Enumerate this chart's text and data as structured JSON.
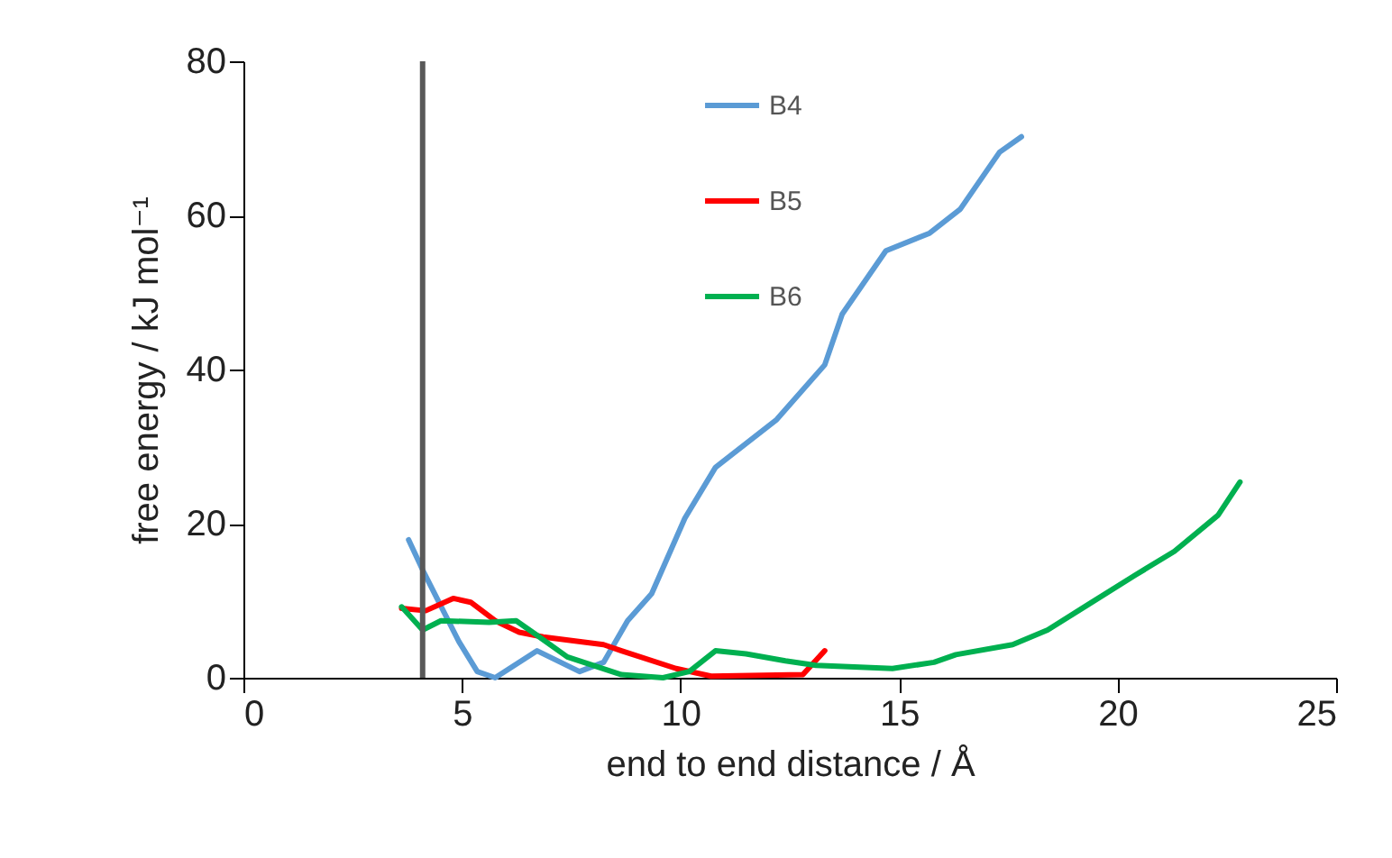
{
  "chart_data": {
    "type": "line",
    "xlabel": "end to end distance / Å",
    "ylabel": "free energy / kJ mol⁻¹",
    "xlim": [
      0,
      25
    ],
    "xticks": [
      0,
      5,
      10,
      15,
      20,
      25
    ],
    "ylim": [
      0,
      80
    ],
    "yticks": [
      0,
      20,
      40,
      60,
      80
    ],
    "grid": false,
    "legend": "top",
    "line_style": "solid",
    "marker": "none",
    "ref_lines": [
      {
        "axis": "x",
        "value": 4.1,
        "color": "#595959"
      }
    ],
    "series": [
      {
        "name": "B4",
        "color": "#5b9bd5",
        "x": [
          3.78,
          4.1,
          4.93,
          5.35,
          5.76,
          6.72,
          7.69,
          8.24,
          8.79,
          9.34,
          10.1,
          10.8,
          12.2,
          13.3,
          13.7,
          14.7,
          15.7,
          16.4,
          17.3,
          17.8
        ],
        "values": [
          17.9,
          14,
          4.7,
          0.8,
          0,
          3.5,
          0.8,
          2,
          7.4,
          10.9,
          20.7,
          27.3,
          33.5,
          40.6,
          47.2,
          55.4,
          57.7,
          60.8,
          68.2,
          70.2
        ]
      },
      {
        "name": "B5",
        "color": "#ff0000",
        "x": [
          3.62,
          4.17,
          4.8,
          5.2,
          5.76,
          6.31,
          6.86,
          8.24,
          8.65,
          9.9,
          10.7,
          12.8,
          13.3
        ],
        "values": [
          9.0,
          8.7,
          10.3,
          9.8,
          7.4,
          5.9,
          5.3,
          4.3,
          3.5,
          1.2,
          0.2,
          0.4,
          3.5
        ]
      },
      {
        "name": "B6",
        "color": "#00b050",
        "x": [
          3.62,
          4.1,
          4.52,
          5.62,
          6.24,
          6.72,
          7.41,
          8.65,
          9.6,
          10.2,
          10.8,
          11.5,
          12.4,
          13.1,
          14.85,
          15.8,
          16.3,
          17.6,
          18.4,
          19.3,
          20.4,
          21.3,
          22.3,
          22.8
        ],
        "values": [
          9.2,
          6.2,
          7.4,
          7.2,
          7.4,
          5.5,
          2.7,
          0.4,
          0,
          0.8,
          3.5,
          3.1,
          2.2,
          1.6,
          1.2,
          2,
          3,
          4.3,
          6.2,
          9.4,
          13.3,
          16.4,
          21.1,
          25.4
        ]
      }
    ]
  }
}
